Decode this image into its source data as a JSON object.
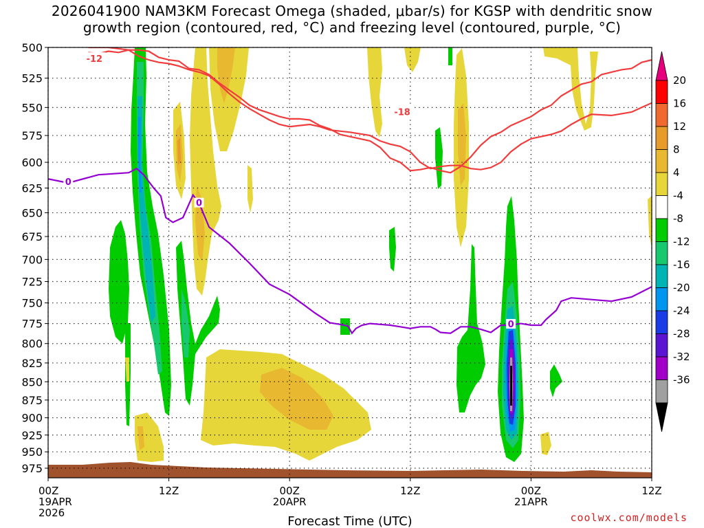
{
  "title": {
    "line1": "2026041900 NAM3KM Forecast Omega (shaded, μbar/s) for KGSP with dendritic snow",
    "line2": "growth region (contoured, red, °C) and freezing level (contoured, purple, °C)"
  },
  "credit": "coolwx.com/models",
  "chart_data": {
    "type": "heatmap",
    "title": "2026041900 NAM3KM Forecast Omega (shaded, μbar/s) for KGSP with dendritic snow growth region (contoured, red, °C) and freezing level (contoured, purple, °C)",
    "xlabel": "Forecast Time (UTC)",
    "ylabel": "",
    "x_range_hours": [
      0,
      60
    ],
    "y_range_hpa": [
      500,
      990
    ],
    "y_scale": "log-pressure (top 500, bottom surface)",
    "grid": true,
    "y_ticks": [
      500,
      525,
      550,
      575,
      600,
      625,
      650,
      675,
      700,
      725,
      750,
      775,
      800,
      825,
      850,
      875,
      900,
      925,
      950,
      975
    ],
    "x_ticks": [
      {
        "hour": 0,
        "label": "00Z",
        "sub1": "19APR",
        "sub2": "2026"
      },
      {
        "hour": 12,
        "label": "12Z",
        "sub1": "",
        "sub2": ""
      },
      {
        "hour": 24,
        "label": "00Z",
        "sub1": "20APR",
        "sub2": ""
      },
      {
        "hour": 36,
        "label": "12Z",
        "sub1": "",
        "sub2": ""
      },
      {
        "hour": 48,
        "label": "00Z",
        "sub1": "21APR",
        "sub2": ""
      },
      {
        "hour": 60,
        "label": "12Z",
        "sub1": "",
        "sub2": ""
      }
    ],
    "colorbar": {
      "labels": [
        "20",
        "16",
        "12",
        "8",
        "4",
        "-4",
        "-8",
        "-12",
        "-16",
        "-20",
        "-24",
        "-28",
        "-32",
        "-36"
      ],
      "colors": [
        "#ff0000",
        "#f06a30",
        "#e69b2a",
        "#e8b830",
        "#e6d63a",
        "#ffffff",
        "#00cc00",
        "#18c86e",
        "#00b4b4",
        "#0096f0",
        "#1a3ce6",
        "#5a14d2",
        "#a000c8",
        "#a0a0a0",
        "#000000"
      ],
      "top_arrow_color": "#e6007e",
      "bottom_arrow_color": "#000000"
    },
    "freezing_level": {
      "label": "0",
      "color": "#9400d3",
      "points": [
        [
          0,
          616
        ],
        [
          2,
          620
        ],
        [
          5,
          612
        ],
        [
          8,
          610
        ],
        [
          8.8,
          606
        ],
        [
          9.5,
          612
        ],
        [
          10.5,
          625
        ],
        [
          11.2,
          633
        ],
        [
          11.7,
          655
        ],
        [
          12.4,
          660
        ],
        [
          13.4,
          655
        ],
        [
          14.4,
          632
        ],
        [
          15,
          640
        ],
        [
          16,
          665
        ],
        [
          18,
          682
        ],
        [
          20,
          704
        ],
        [
          22,
          728
        ],
        [
          24,
          740
        ],
        [
          25.5,
          753
        ],
        [
          26.5,
          762
        ],
        [
          28,
          774
        ],
        [
          29,
          776
        ],
        [
          29.8,
          778
        ],
        [
          30.2,
          787
        ],
        [
          30.6,
          781
        ],
        [
          31.2,
          777
        ],
        [
          32,
          775
        ],
        [
          33,
          776
        ],
        [
          34,
          777
        ],
        [
          35,
          779
        ],
        [
          36,
          781
        ],
        [
          37,
          779
        ],
        [
          38,
          779
        ],
        [
          38.5,
          782
        ],
        [
          39,
          786
        ],
        [
          40,
          787
        ],
        [
          41,
          779
        ],
        [
          42,
          779
        ],
        [
          43,
          782
        ],
        [
          44,
          786
        ],
        [
          45,
          777
        ],
        [
          46,
          777
        ],
        [
          47,
          775
        ],
        [
          48,
          777
        ],
        [
          49,
          777
        ],
        [
          49.5,
          770
        ],
        [
          50.5,
          759
        ],
        [
          51,
          748
        ],
        [
          52,
          744
        ],
        [
          54,
          746
        ],
        [
          56,
          748
        ],
        [
          58,
          743
        ],
        [
          60,
          731
        ]
      ]
    },
    "dgz_lines": [
      {
        "label": "-12",
        "color": "#f03c3c",
        "points": [
          [
            4,
            504
          ],
          [
            5,
            505
          ],
          [
            6,
            503
          ],
          [
            7,
            504
          ],
          [
            8,
            502
          ],
          [
            9,
            507
          ],
          [
            10,
            510
          ],
          [
            11,
            512
          ],
          [
            12,
            513
          ],
          [
            13,
            515
          ],
          [
            14,
            518
          ],
          [
            15,
            520
          ],
          [
            16,
            523
          ],
          [
            17,
            530
          ],
          [
            18,
            538
          ],
          [
            19,
            545
          ],
          [
            20,
            551
          ],
          [
            21,
            556
          ],
          [
            22,
            561
          ],
          [
            23,
            565
          ],
          [
            24,
            567
          ],
          [
            25,
            566
          ],
          [
            26,
            565
          ],
          [
            27,
            567
          ],
          [
            28,
            570
          ],
          [
            30,
            572
          ],
          [
            32,
            575
          ],
          [
            33,
            580
          ],
          [
            34,
            583
          ],
          [
            35,
            585
          ],
          [
            36,
            590
          ],
          [
            37,
            600
          ],
          [
            38,
            606
          ],
          [
            39,
            604
          ],
          [
            40,
            603
          ],
          [
            41,
            603
          ],
          [
            42,
            606
          ],
          [
            43,
            607
          ],
          [
            44,
            605
          ],
          [
            45,
            600
          ],
          [
            46,
            590
          ],
          [
            47,
            583
          ],
          [
            48,
            578
          ],
          [
            49,
            576
          ],
          [
            50,
            574
          ],
          [
            51,
            571
          ],
          [
            52,
            565
          ],
          [
            53,
            560
          ],
          [
            54,
            556
          ],
          [
            56,
            557
          ],
          [
            58,
            554
          ],
          [
            59,
            550
          ],
          [
            60,
            546
          ]
        ]
      },
      {
        "label": "-18",
        "color": "#f03c3c",
        "points": [
          [
            4,
            500
          ],
          [
            6,
            500
          ],
          [
            7,
            501
          ],
          [
            8,
            502
          ],
          [
            9,
            502
          ],
          [
            10,
            503
          ],
          [
            11,
            508
          ],
          [
            12,
            510
          ],
          [
            13,
            511
          ],
          [
            14,
            517
          ],
          [
            15,
            518
          ],
          [
            16,
            522
          ],
          [
            17,
            529
          ],
          [
            18,
            535
          ],
          [
            19,
            541
          ],
          [
            20,
            548
          ],
          [
            21,
            552
          ],
          [
            22,
            555
          ],
          [
            23,
            558
          ],
          [
            24,
            560
          ],
          [
            25,
            560
          ],
          [
            26,
            561
          ],
          [
            27,
            566
          ],
          [
            28,
            569
          ],
          [
            29,
            574
          ],
          [
            30,
            576
          ],
          [
            31,
            578
          ],
          [
            32,
            580
          ],
          [
            33,
            586
          ],
          [
            34,
            596
          ],
          [
            35,
            600
          ],
          [
            36,
            608
          ],
          [
            37,
            607
          ],
          [
            38,
            605
          ],
          [
            39,
            608
          ],
          [
            40,
            610
          ],
          [
            41,
            604
          ],
          [
            42,
            595
          ],
          [
            43,
            584
          ],
          [
            44,
            576
          ],
          [
            45,
            572
          ],
          [
            46,
            566
          ],
          [
            47,
            562
          ],
          [
            48,
            558
          ],
          [
            49,
            552
          ],
          [
            50,
            548
          ],
          [
            51,
            540
          ],
          [
            52,
            535
          ],
          [
            53,
            530
          ],
          [
            54,
            528
          ],
          [
            55,
            522
          ],
          [
            56,
            520
          ],
          [
            57,
            518
          ],
          [
            58,
            517
          ],
          [
            59,
            512
          ],
          [
            60,
            510
          ]
        ]
      }
    ]
  }
}
